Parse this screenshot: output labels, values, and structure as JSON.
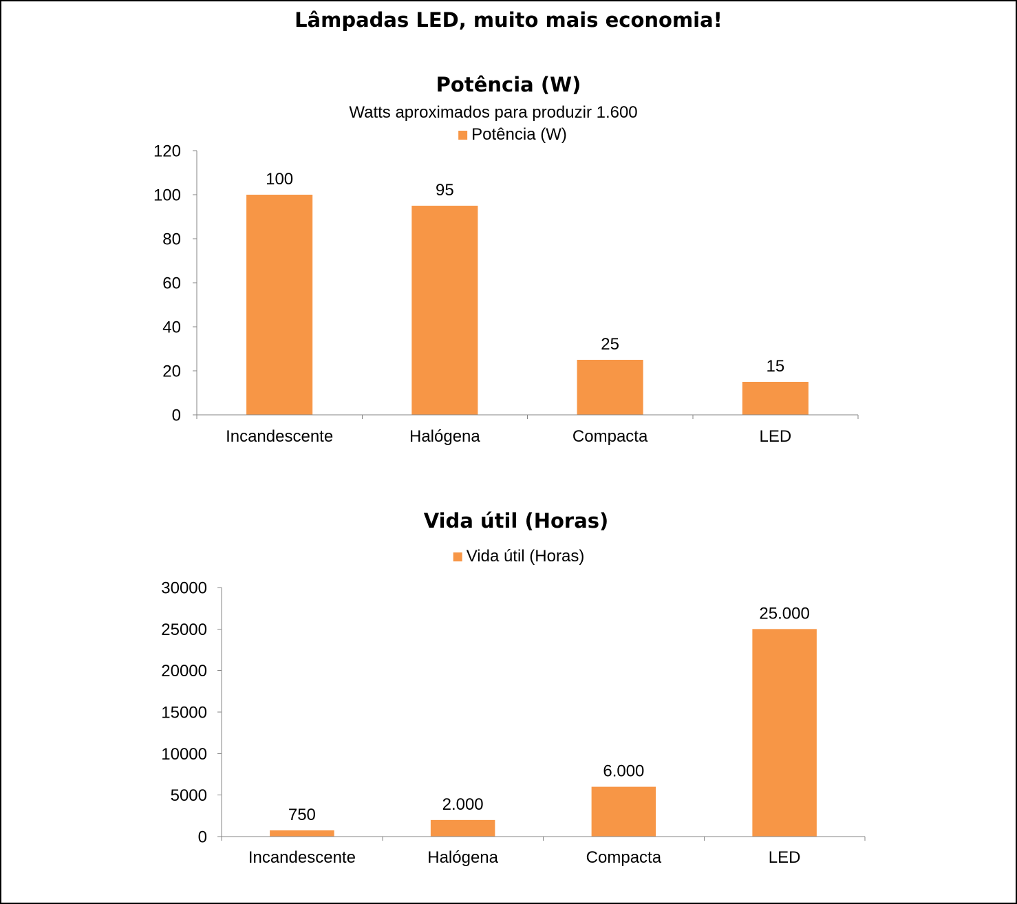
{
  "page": {
    "title": "Lâmpadas LED, muito mais economia!"
  },
  "colors": {
    "axis": "#868686"
  },
  "chart_data": [
    {
      "type": "bar",
      "title": "Potência (W)",
      "subtitle": "Watts aproximados para produzir 1.600",
      "categories": [
        "Incandescente",
        "Halógena",
        "Compacta",
        "LED"
      ],
      "series": [
        {
          "name": "Potência (W)",
          "values": [
            100,
            95,
            25,
            15
          ],
          "data_labels": [
            "100",
            "95",
            "25",
            "15"
          ],
          "color": "#F79646"
        }
      ],
      "ylim": [
        0,
        120
      ],
      "yticks": [
        0,
        20,
        40,
        60,
        80,
        100,
        120
      ],
      "grid": false,
      "legend": "top"
    },
    {
      "type": "bar",
      "title": "Vida útil (Horas)",
      "categories": [
        "Incandescente",
        "Halógena",
        "Compacta",
        "LED"
      ],
      "series": [
        {
          "name": "Vida útil (Horas)",
          "values": [
            750,
            2000,
            6000,
            25000
          ],
          "data_labels": [
            "750",
            "2.000",
            "6.000",
            "25.000"
          ],
          "color": "#F79646"
        }
      ],
      "ylim": [
        0,
        30000
      ],
      "yticks": [
        0,
        5000,
        10000,
        15000,
        20000,
        25000,
        30000
      ],
      "grid": false,
      "legend": "top"
    }
  ]
}
